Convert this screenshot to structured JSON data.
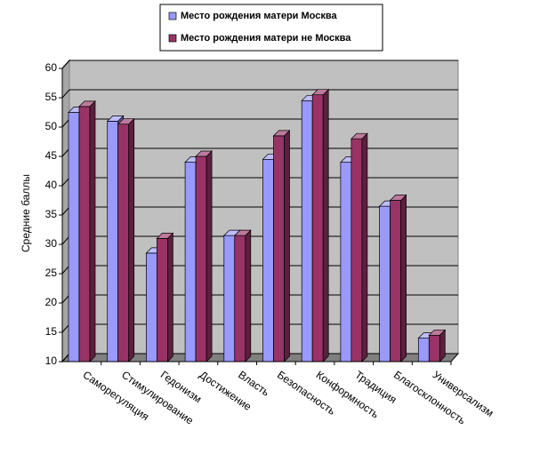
{
  "chart_data": {
    "type": "bar3d",
    "y_label": "Средние баллы",
    "categories": [
      "Саморегуляция",
      "Стимулирование",
      "Гедонизм",
      "Достижение",
      "Власть",
      "Безопасность",
      "Конформность",
      "Традиция",
      "Благосклонность",
      "Универсализм"
    ],
    "series": [
      {
        "name": "Место рождения матери Москва",
        "color": "#9999FF",
        "values": [
          52.5,
          51,
          28.5,
          44,
          31.5,
          44.5,
          54.5,
          44,
          36.5,
          14
        ]
      },
      {
        "name": "Место рождения матери не Москва",
        "color": "#993366",
        "values": [
          53.5,
          50.5,
          31,
          45,
          31.5,
          48.5,
          55.5,
          48,
          37.5,
          14.5
        ]
      }
    ],
    "ylim": [
      10,
      60
    ],
    "yticks": [
      10,
      15,
      20,
      25,
      30,
      35,
      40,
      45,
      50,
      55,
      60
    ],
    "grid": true,
    "legend": "top"
  }
}
